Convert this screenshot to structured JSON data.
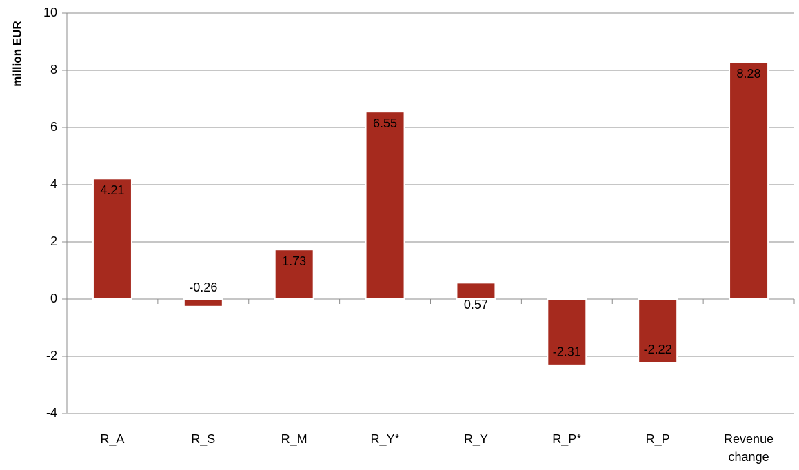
{
  "chart_data": {
    "type": "bar",
    "y_label": "million EUR",
    "categories": [
      "R_A",
      "R_S",
      "R_M",
      "R_Y*",
      "R_Y",
      "R_P*",
      "R_P",
      "Revenue change"
    ],
    "values": [
      4.21,
      -0.26,
      1.73,
      6.55,
      0.57,
      -2.31,
      -2.22,
      8.28
    ],
    "color": "#a62a1e",
    "ylim": [
      -4,
      10
    ],
    "yticks": [
      -4,
      -2,
      0,
      2,
      4,
      6,
      8,
      10
    ],
    "grid": true
  }
}
